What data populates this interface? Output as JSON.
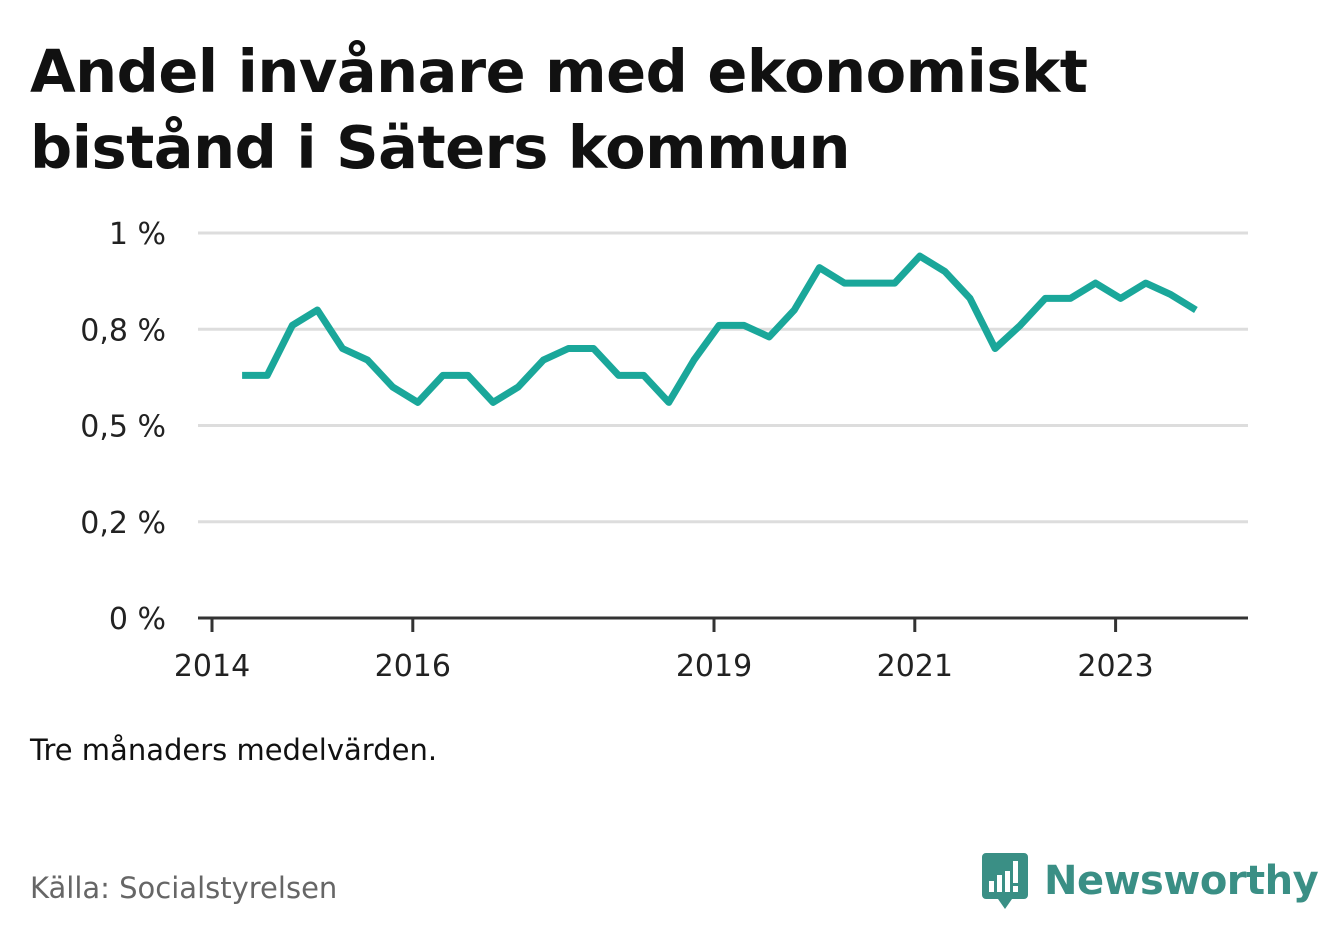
{
  "title": "Andel invånare med ekonomiskt bistånd i Säters kommun",
  "note": "Tre månaders medelvärden.",
  "source": "Källa: Socialstyrelsen",
  "brand": {
    "name": "Newsworthy",
    "icon": "newsworthy-chart-bubble-icon",
    "color": "#3a8f85"
  },
  "colors": {
    "line": "#1aa79a",
    "grid": "#dddddd",
    "axis": "#333333"
  },
  "chart_data": {
    "type": "line",
    "ylim": [
      0,
      1
    ],
    "y_ticks": [
      0,
      0.25,
      0.5,
      0.75,
      1
    ],
    "y_tick_labels": [
      "0 %",
      "0,2 %",
      "0,5 %",
      "0,8 %",
      "1 %"
    ],
    "x_ticks": [
      2014,
      2016,
      2019,
      2021,
      2023
    ],
    "x_tick_labels": [
      "2014",
      "2016",
      "2019",
      "2021",
      "2023"
    ],
    "grid": true,
    "series": [
      {
        "x": [
          2014.3,
          2014.55,
          2014.8,
          2015.05,
          2015.3,
          2015.55,
          2015.8,
          2016.05,
          2016.3,
          2016.55,
          2016.8,
          2017.05,
          2017.3,
          2017.55,
          2017.8,
          2018.05,
          2018.3,
          2018.55,
          2018.8,
          2019.05,
          2019.3,
          2019.55,
          2019.8,
          2020.05,
          2020.3,
          2020.55,
          2020.8,
          2021.05,
          2021.3,
          2021.55,
          2021.8,
          2022.05,
          2022.3,
          2022.55,
          2022.8,
          2023.05,
          2023.3,
          2023.55,
          2023.8
        ],
        "y": [
          0.63,
          0.63,
          0.76,
          0.8,
          0.7,
          0.67,
          0.6,
          0.56,
          0.63,
          0.63,
          0.56,
          0.6,
          0.67,
          0.7,
          0.7,
          0.63,
          0.63,
          0.56,
          0.67,
          0.76,
          0.76,
          0.73,
          0.8,
          0.91,
          0.87,
          0.87,
          0.87,
          0.94,
          0.9,
          0.83,
          0.7,
          0.76,
          0.83,
          0.83,
          0.87,
          0.83,
          0.87,
          0.84,
          0.8
        ]
      }
    ]
  }
}
